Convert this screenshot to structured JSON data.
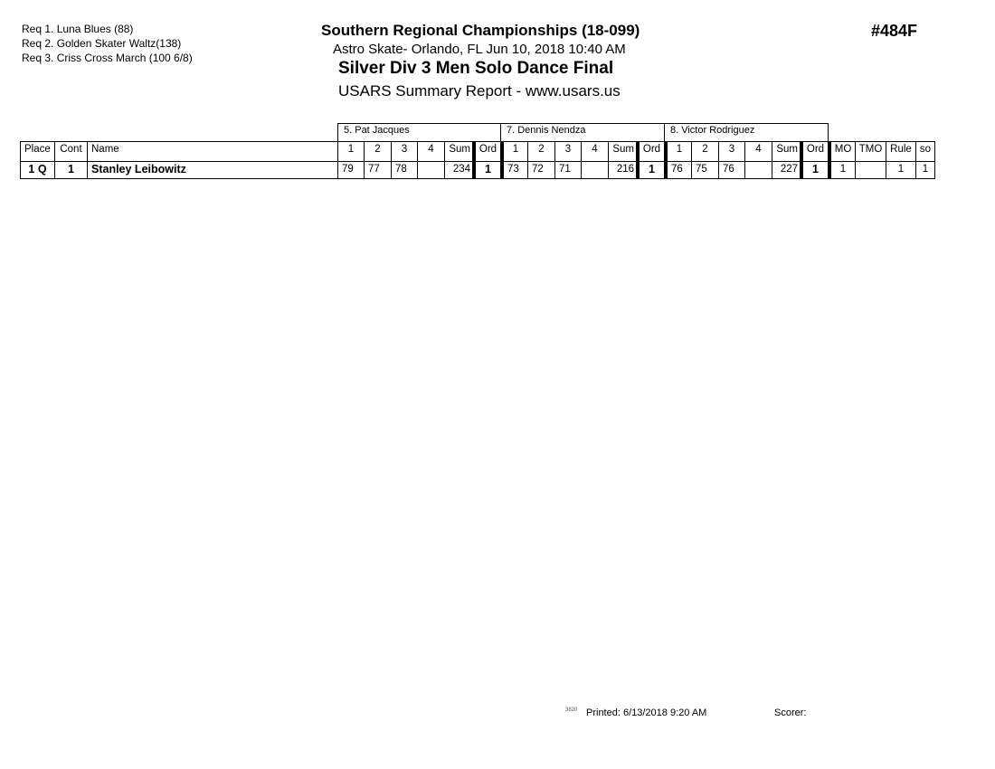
{
  "requirements": [
    "Req  1.  Luna Blues (88)",
    "Req  2.  Golden Skater Waltz(138)",
    "Req  3.  Criss Cross March (100 6/8)"
  ],
  "header": {
    "title": "Southern Regional Championships (18-099)",
    "location": "Astro Skate- Orlando, FL  Jun 10, 2018  10:40 AM",
    "event": "Silver Div 3  Men Solo Dance Final",
    "report": "USARS Summary Report - www.usars.us",
    "event_code": "#484F"
  },
  "judges": [
    "5.  Pat Jacques",
    "7.  Dennis Nendza",
    "8.  Victor Rodriguez"
  ],
  "columns": {
    "place": "Place",
    "cont": "Cont",
    "name": "Name",
    "judge_cols": [
      "1",
      "2",
      "3",
      "4",
      "Sum",
      "Ord"
    ],
    "mo": "MO",
    "tmo": "TMO",
    "rule": "Rule",
    "so": "so"
  },
  "rows": [
    {
      "place": "1 Q",
      "cont": "1",
      "name": "Stanley Leibowitz",
      "judges": [
        [
          "79",
          "77",
          "78",
          "",
          "234",
          "1"
        ],
        [
          "73",
          "72",
          "71",
          "",
          "216",
          "1"
        ],
        [
          "76",
          "75",
          "76",
          "",
          "227",
          "1"
        ]
      ],
      "mo": "1",
      "tmo": "",
      "rule": "1",
      "so": "1"
    }
  ],
  "footer": {
    "code": "3820",
    "printed": "Printed:  6/13/2018  9:20 AM",
    "scorer": "Scorer:"
  }
}
